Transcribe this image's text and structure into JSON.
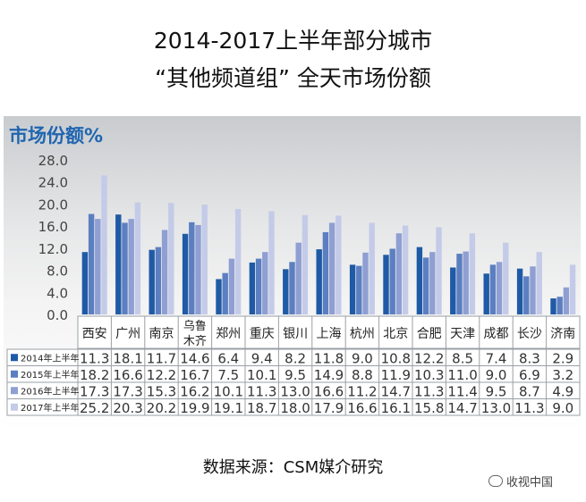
{
  "title_line1": "2014-2017上半年部分城市",
  "title_line2": "“其他频道组”  全天市场份额",
  "source": "数据来源：CSM媒介研究",
  "watermark": "收视中国",
  "chart_data": {
    "type": "bar",
    "ylabel": "市场份额%",
    "ylim": [
      0,
      28
    ],
    "yticks": [
      "0.0",
      "4.0",
      "8.0",
      "12.0",
      "16.0",
      "20.0",
      "24.0",
      "28.0"
    ],
    "grid": false,
    "legend": "table-below",
    "categories": [
      "西安",
      "广州",
      "南京",
      "乌鲁木齐",
      "郑州",
      "重庆",
      "银川",
      "上海",
      "杭州",
      "北京",
      "合肥",
      "天津",
      "成都",
      "长沙",
      "济南"
    ],
    "category_lines": [
      [
        "西安"
      ],
      [
        "广州"
      ],
      [
        "南京"
      ],
      [
        "乌鲁",
        "木齐"
      ],
      [
        "郑州"
      ],
      [
        "重庆"
      ],
      [
        "银川"
      ],
      [
        "上海"
      ],
      [
        "杭州"
      ],
      [
        "北京"
      ],
      [
        "合肥"
      ],
      [
        "天津"
      ],
      [
        "成都"
      ],
      [
        "长沙"
      ],
      [
        "济南"
      ]
    ],
    "series": [
      {
        "name": "2014年上半年",
        "color": "#1f5aa6",
        "values": [
          11.3,
          18.1,
          11.7,
          14.6,
          6.4,
          9.4,
          8.2,
          11.8,
          9.0,
          10.8,
          12.2,
          8.5,
          7.4,
          8.3,
          2.9
        ]
      },
      {
        "name": "2015年上半年",
        "color": "#5b7fc0",
        "values": [
          18.2,
          16.6,
          12.2,
          16.7,
          7.5,
          10.1,
          9.5,
          14.9,
          8.8,
          11.9,
          10.3,
          11.0,
          9.0,
          6.9,
          3.2
        ]
      },
      {
        "name": "2016年上半年",
        "color": "#8f9fd3",
        "values": [
          17.3,
          17.3,
          15.3,
          16.2,
          10.1,
          11.3,
          13.0,
          16.6,
          11.2,
          14.7,
          11.3,
          11.4,
          9.5,
          8.7,
          4.9
        ]
      },
      {
        "name": "2017年上半年",
        "color": "#c4cbe8",
        "values": [
          25.2,
          20.3,
          20.2,
          19.9,
          19.1,
          18.7,
          18.0,
          17.9,
          16.6,
          16.1,
          15.8,
          14.7,
          13.0,
          11.3,
          9.0
        ]
      }
    ]
  }
}
